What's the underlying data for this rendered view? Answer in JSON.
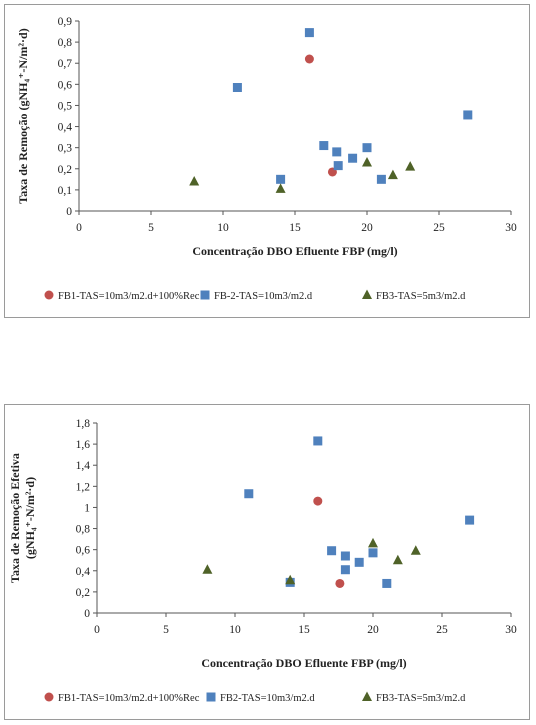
{
  "chart_data": [
    {
      "type": "scatter",
      "title": "",
      "xlabel": "Concentração DBO Efluente FBP (mg/l)",
      "ylabel": "Taxa de Remoção (gNH₄⁺-N/m²·d)",
      "xlim": [
        0,
        30
      ],
      "ylim": [
        0,
        0.9
      ],
      "xticks": [
        0,
        5,
        10,
        15,
        20,
        25,
        30
      ],
      "yticks": [
        "0",
        "0,1",
        "0,2",
        "0,3",
        "0,4",
        "0,5",
        "0,6",
        "0,7",
        "0,8",
        "0,9"
      ],
      "grid": false,
      "legend_position": "bottom",
      "series": [
        {
          "name": "FB1-TAS=10m3/m2.d+100%Rec",
          "marker": "circle",
          "color": "#c0504d",
          "points": [
            [
              16,
              0.72
            ],
            [
              17.6,
              0.185
            ]
          ]
        },
        {
          "name": "FB-2-TAS=10m3/m2.d",
          "marker": "square",
          "color": "#4f81bd",
          "points": [
            [
              11,
              0.585
            ],
            [
              14,
              0.15
            ],
            [
              16,
              0.845
            ],
            [
              17,
              0.31
            ],
            [
              17.9,
              0.28
            ],
            [
              18,
              0.215
            ],
            [
              19,
              0.25
            ],
            [
              20,
              0.3
            ],
            [
              21,
              0.15
            ],
            [
              27,
              0.455
            ]
          ]
        },
        {
          "name": "FB3-TAS=5m3/m2.d",
          "marker": "triangle",
          "color": "#4f6228",
          "points": [
            [
              8,
              0.14
            ],
            [
              14,
              0.105
            ],
            [
              20,
              0.23
            ],
            [
              21.8,
              0.17
            ],
            [
              23,
              0.21
            ]
          ]
        }
      ]
    },
    {
      "type": "scatter",
      "title": "",
      "xlabel": "Concentração DBO Efluente FBP (mg/l)",
      "ylabel": "Taxa de Remoção Efetiva (gNH₄⁺-N/m²·d)",
      "xlim": [
        0,
        30
      ],
      "ylim": [
        0,
        1.8
      ],
      "xticks": [
        0,
        5,
        10,
        15,
        20,
        25,
        30
      ],
      "yticks": [
        "0",
        "0,2",
        "0,4",
        "0,6",
        "0,8",
        "1",
        "1,2",
        "1,4",
        "1,6",
        "1,8"
      ],
      "grid": false,
      "legend_position": "bottom",
      "series": [
        {
          "name": "FB1-TAS=10m3/m2.d+100%Rec",
          "marker": "circle",
          "color": "#c0504d",
          "points": [
            [
              16,
              1.06
            ],
            [
              17.6,
              0.28
            ]
          ]
        },
        {
          "name": "FB2-TAS=10m3/m2.d",
          "marker": "square",
          "color": "#4f81bd",
          "points": [
            [
              11,
              1.13
            ],
            [
              14,
              0.29
            ],
            [
              16,
              1.63
            ],
            [
              17,
              0.59
            ],
            [
              18,
              0.54
            ],
            [
              18,
              0.41
            ],
            [
              19,
              0.48
            ],
            [
              20,
              0.57
            ],
            [
              21,
              0.28
            ],
            [
              27,
              0.88
            ]
          ]
        },
        {
          "name": "FB3-TAS=5m3/m2.d",
          "marker": "triangle",
          "color": "#4f6228",
          "points": [
            [
              8,
              0.41
            ],
            [
              14,
              0.31
            ],
            [
              20,
              0.66
            ],
            [
              21.8,
              0.5
            ],
            [
              23.1,
              0.59
            ]
          ]
        }
      ]
    }
  ]
}
